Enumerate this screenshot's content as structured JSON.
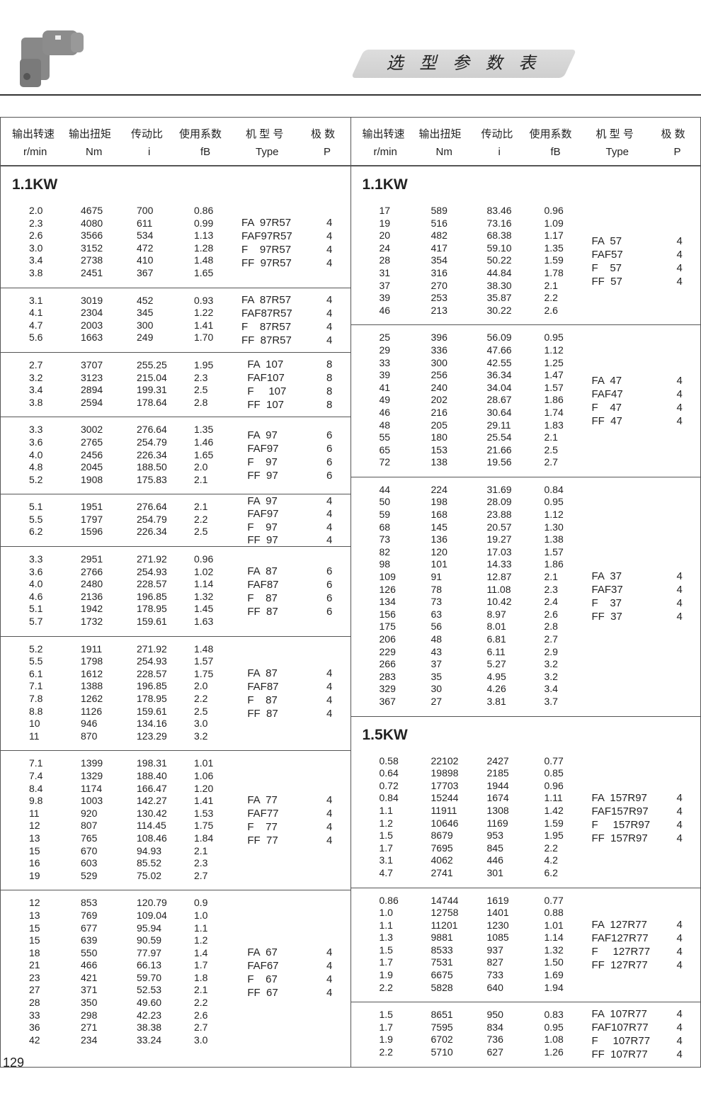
{
  "header": {
    "title": "选 型 参 数 表",
    "columns_cn": [
      "输出转速",
      "输出扭矩",
      "传动比",
      "使用系数",
      "机 型 号",
      "极 数"
    ],
    "columns_en": [
      "r/min",
      "Nm",
      "i",
      "fB",
      "Type",
      "P"
    ]
  },
  "left": [
    {
      "section": "1.1KW",
      "rows": [
        [
          "2.0",
          "4675",
          "700",
          "0.86"
        ],
        [
          "2.3",
          "4080",
          "611",
          "0.99"
        ],
        [
          "2.6",
          "3566",
          "534",
          "1.13"
        ],
        [
          "3.0",
          "3152",
          "472",
          "1.28"
        ],
        [
          "3.4",
          "2738",
          "410",
          "1.48"
        ],
        [
          "3.8",
          "2451",
          "367",
          "1.65"
        ]
      ],
      "types": [
        "FA  97R57",
        "FAF97R57",
        "F    97R57",
        "FF  97R57"
      ],
      "poles": [
        "4",
        "4",
        "4",
        "4"
      ]
    },
    {
      "rows": [
        [
          "3.1",
          "3019",
          "452",
          "0.93"
        ],
        [
          "4.1",
          "2304",
          "345",
          "1.22"
        ],
        [
          "4.7",
          "2003",
          "300",
          "1.41"
        ],
        [
          "5.6",
          "1663",
          "249",
          "1.70"
        ]
      ],
      "types": [
        "FA  87R57",
        "FAF87R57",
        "F    87R57",
        "FF  87R57"
      ],
      "poles": [
        "4",
        "4",
        "4",
        "4"
      ]
    },
    {
      "rows": [
        [
          "2.7",
          "3707",
          "255.25",
          "1.95"
        ],
        [
          "3.2",
          "3123",
          "215.04",
          "2.3"
        ],
        [
          "3.4",
          "2894",
          "199.31",
          "2.5"
        ],
        [
          "3.8",
          "2594",
          "178.64",
          "2.8"
        ]
      ],
      "types": [
        "  FA  107",
        "  FAF107",
        "  F     107",
        "  FF  107"
      ],
      "poles": [
        "8",
        "8",
        "8",
        "8"
      ]
    },
    {
      "rows": [
        [
          "3.3",
          "3002",
          "276.64",
          "1.35"
        ],
        [
          "3.6",
          "2765",
          "254.79",
          "1.46"
        ],
        [
          "4.0",
          "2456",
          "226.34",
          "1.65"
        ],
        [
          "4.8",
          "2045",
          "188.50",
          "2.0"
        ],
        [
          "5.2",
          "1908",
          "175.83",
          "2.1"
        ]
      ],
      "types": [
        "  FA  97",
        "  FAF97",
        "  F    97",
        "  FF  97"
      ],
      "poles": [
        "6",
        "6",
        "6",
        "6"
      ]
    },
    {
      "rows": [
        [
          "5.1",
          "1951",
          "276.64",
          "2.1"
        ],
        [
          "5.5",
          "1797",
          "254.79",
          "2.2"
        ],
        [
          "6.2",
          "1596",
          "226.34",
          "2.5"
        ]
      ],
      "types": [
        "  FA  97",
        "  FAF97",
        "  F    97",
        "  FF  97"
      ],
      "poles": [
        "4",
        "4",
        "4",
        "4"
      ]
    },
    {
      "rows": [
        [
          "3.3",
          "2951",
          "271.92",
          "0.96"
        ],
        [
          "3.6",
          "2766",
          "254.93",
          "1.02"
        ],
        [
          "4.0",
          "2480",
          "228.57",
          "1.14"
        ],
        [
          "4.6",
          "2136",
          "196.85",
          "1.32"
        ],
        [
          "5.1",
          "1942",
          "178.95",
          "1.45"
        ],
        [
          "5.7",
          "1732",
          "159.61",
          "1.63"
        ]
      ],
      "types": [
        "  FA  87",
        "  FAF87",
        "  F    87",
        "  FF  87"
      ],
      "poles": [
        "6",
        "6",
        "6",
        "6"
      ]
    },
    {
      "rows": [
        [
          "5.2",
          "1911",
          "271.92",
          "1.48"
        ],
        [
          "5.5",
          "1798",
          "254.93",
          "1.57"
        ],
        [
          "6.1",
          "1612",
          "228.57",
          "1.75"
        ],
        [
          "7.1",
          "1388",
          "196.85",
          "2.0"
        ],
        [
          "7.8",
          "1262",
          "178.95",
          "2.2"
        ],
        [
          "8.8",
          "1126",
          "159.61",
          "2.5"
        ],
        [
          "10",
          "946",
          "134.16",
          "3.0"
        ],
        [
          "11",
          "870",
          "123.29",
          "3.2"
        ]
      ],
      "types": [
        "  FA  87",
        "  FAF87",
        "  F    87",
        "  FF  87"
      ],
      "poles": [
        "4",
        "4",
        "4",
        "4"
      ]
    },
    {
      "rows": [
        [
          "7.1",
          "1399",
          "198.31",
          "1.01"
        ],
        [
          "7.4",
          "1329",
          "188.40",
          "1.06"
        ],
        [
          "8.4",
          "1174",
          "166.47",
          "1.20"
        ],
        [
          "9.8",
          "1003",
          "142.27",
          "1.41"
        ],
        [
          "11",
          "920",
          "130.42",
          "1.53"
        ],
        [
          "12",
          "807",
          "114.45",
          "1.75"
        ],
        [
          "13",
          "765",
          "108.46",
          "1.84"
        ],
        [
          "15",
          "670",
          "94.93",
          "2.1"
        ],
        [
          "16",
          "603",
          "85.52",
          "2.3"
        ],
        [
          "19",
          "529",
          "75.02",
          "2.7"
        ]
      ],
      "types": [
        "  FA  77",
        "  FAF77",
        "  F    77",
        "  FF  77"
      ],
      "poles": [
        "4",
        "4",
        "4",
        "4"
      ]
    },
    {
      "rows": [
        [
          "12",
          "853",
          "120.79",
          "0.9"
        ],
        [
          "13",
          "769",
          "109.04",
          "1.0"
        ],
        [
          "15",
          "677",
          "95.94",
          "1.1"
        ],
        [
          "15",
          "639",
          "90.59",
          "1.2"
        ],
        [
          "18",
          "550",
          "77.97",
          "1.4"
        ],
        [
          "21",
          "466",
          "66.13",
          "1.7"
        ],
        [
          "23",
          "421",
          "59.70",
          "1.8"
        ],
        [
          "27",
          "371",
          "52.53",
          "2.1"
        ],
        [
          "28",
          "350",
          "49.60",
          "2.2"
        ],
        [
          "33",
          "298",
          "42.23",
          "2.6"
        ],
        [
          "36",
          "271",
          "38.38",
          "2.7"
        ],
        [
          "42",
          "234",
          "33.24",
          "3.0"
        ]
      ],
      "types": [
        "  FA  67",
        "  FAF67",
        "  F    67",
        "  FF  67"
      ],
      "poles": [
        "4",
        "4",
        "4",
        "4"
      ]
    }
  ],
  "right": [
    {
      "section": "1.1KW",
      "rows": [
        [
          "17",
          "589",
          "83.46",
          "0.96"
        ],
        [
          "19",
          "516",
          "73.16",
          "1.09"
        ],
        [
          "20",
          "482",
          "68.38",
          "1.17"
        ],
        [
          "24",
          "417",
          "59.10",
          "1.35"
        ],
        [
          "28",
          "354",
          "50.22",
          "1.59"
        ],
        [
          "31",
          "316",
          "44.84",
          "1.78"
        ],
        [
          "37",
          "270",
          "38.30",
          "2.1"
        ],
        [
          "39",
          "253",
          "35.87",
          "2.2"
        ],
        [
          "46",
          "213",
          "30.22",
          "2.6"
        ]
      ],
      "types": [
        "FA  57",
        "FAF57",
        "F    57",
        "FF  57"
      ],
      "poles": [
        "4",
        "4",
        "4",
        "4"
      ]
    },
    {
      "rows": [
        [
          "25",
          "396",
          "56.09",
          "0.95"
        ],
        [
          "29",
          "336",
          "47.66",
          "1.12"
        ],
        [
          "33",
          "300",
          "42.55",
          "1.25"
        ],
        [
          "39",
          "256",
          "36.34",
          "1.47"
        ],
        [
          "41",
          "240",
          "34.04",
          "1.57"
        ],
        [
          "49",
          "202",
          "28.67",
          "1.86"
        ],
        [
          "46",
          "216",
          "30.64",
          "1.74"
        ],
        [
          "48",
          "205",
          "29.11",
          "1.83"
        ],
        [
          "55",
          "180",
          "25.54",
          "2.1"
        ],
        [
          "65",
          "153",
          "21.66",
          "2.5"
        ],
        [
          "72",
          "138",
          "19.56",
          "2.7"
        ]
      ],
      "types": [
        "FA  47",
        "FAF47",
        "F    47",
        "FF  47"
      ],
      "poles": [
        "4",
        "4",
        "4",
        "4"
      ]
    },
    {
      "rows": [
        [
          "44",
          "224",
          "31.69",
          "0.84"
        ],
        [
          "50",
          "198",
          "28.09",
          "0.95"
        ],
        [
          "59",
          "168",
          "23.88",
          "1.12"
        ],
        [
          "68",
          "145",
          "20.57",
          "1.30"
        ],
        [
          "73",
          "136",
          "19.27",
          "1.38"
        ],
        [
          "82",
          "120",
          "17.03",
          "1.57"
        ],
        [
          "98",
          "101",
          "14.33",
          "1.86"
        ],
        [
          "109",
          "91",
          "12.87",
          "2.1"
        ],
        [
          "126",
          "78",
          "11.08",
          "2.3"
        ],
        [
          "134",
          "73",
          "10.42",
          "2.4"
        ],
        [
          "156",
          "63",
          "8.97",
          "2.6"
        ],
        [
          "175",
          "56",
          "8.01",
          "2.8"
        ],
        [
          "206",
          "48",
          "6.81",
          "2.7"
        ],
        [
          "229",
          "43",
          "6.11",
          "2.9"
        ],
        [
          "266",
          "37",
          "5.27",
          "3.2"
        ],
        [
          "283",
          "35",
          "4.95",
          "3.2"
        ],
        [
          "329",
          "30",
          "4.26",
          "3.4"
        ],
        [
          "367",
          "27",
          "3.81",
          "3.7"
        ]
      ],
      "types": [
        "FA  37",
        "FAF37",
        "F    37",
        "FF  37"
      ],
      "poles": [
        "4",
        "4",
        "4",
        "4"
      ]
    },
    {
      "section": "1.5KW",
      "rows": [
        [
          "0.58",
          "22102",
          "2427",
          "0.77"
        ],
        [
          "0.64",
          "19898",
          "2185",
          "0.85"
        ],
        [
          "0.72",
          "17703",
          "1944",
          "0.96"
        ],
        [
          "0.84",
          "15244",
          "1674",
          "1.11"
        ],
        [
          "1.1",
          "11911",
          "1308",
          "1.42"
        ],
        [
          "1.2",
          "10646",
          "1169",
          "1.59"
        ],
        [
          "1.5",
          "8679",
          "953",
          "1.95"
        ],
        [
          "1.7",
          "7695",
          "845",
          "2.2"
        ],
        [
          "3.1",
          "4062",
          "446",
          "4.2"
        ],
        [
          "4.7",
          "2741",
          "301",
          "6.2"
        ]
      ],
      "types": [
        "FA  157R97",
        "FAF157R97",
        "F     157R97",
        "FF  157R97"
      ],
      "poles": [
        "4",
        "4",
        "4",
        "4"
      ]
    },
    {
      "rows": [
        [
          "0.86",
          "14744",
          "1619",
          "0.77"
        ],
        [
          "1.0",
          "12758",
          "1401",
          "0.88"
        ],
        [
          "1.1",
          "11201",
          "1230",
          "1.01"
        ],
        [
          "1.3",
          "9881",
          "1085",
          "1.14"
        ],
        [
          "1.5",
          "8533",
          "937",
          "1.32"
        ],
        [
          "1.7",
          "7531",
          "827",
          "1.50"
        ],
        [
          "1.9",
          "6675",
          "733",
          "1.69"
        ],
        [
          "2.2",
          "5828",
          "640",
          "1.94"
        ]
      ],
      "types": [
        "FA  127R77",
        "FAF127R77",
        "F     127R77",
        "FF  127R77"
      ],
      "poles": [
        "4",
        "4",
        "4",
        "4"
      ]
    },
    {
      "rows": [
        [
          "1.5",
          "8651",
          "950",
          "0.83"
        ],
        [
          "1.7",
          "7595",
          "834",
          "0.95"
        ],
        [
          "1.9",
          "6702",
          "736",
          "1.08"
        ],
        [
          "2.2",
          "5710",
          "627",
          "1.26"
        ]
      ],
      "types": [
        "FA  107R77",
        "FAF107R77",
        "F     107R77",
        "FF  107R77"
      ],
      "poles": [
        "4",
        "4",
        "4",
        "4"
      ]
    }
  ],
  "page_number": "129"
}
